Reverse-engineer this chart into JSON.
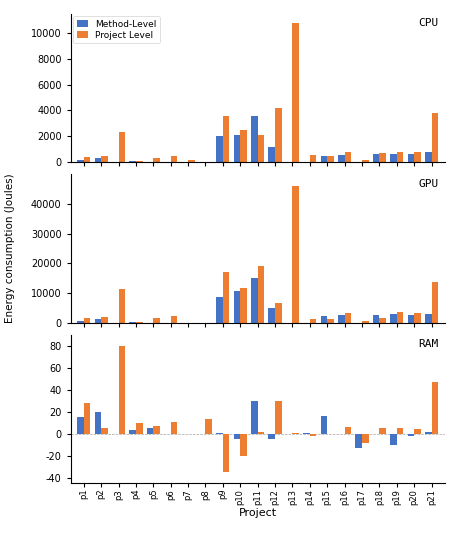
{
  "categories": [
    "p1",
    "p2",
    "p3",
    "p4",
    "p5",
    "p6",
    "p7",
    "p8",
    "p9",
    "p10",
    "p11",
    "p12",
    "p13",
    "p14",
    "p15",
    "p16",
    "p17",
    "p18",
    "p19",
    "p20",
    "p21"
  ],
  "cpu_method": [
    200,
    350,
    0,
    80,
    0,
    0,
    0,
    0,
    2000,
    2100,
    3600,
    1200,
    0,
    0,
    500,
    550,
    0,
    600,
    650,
    650,
    750
  ],
  "cpu_project": [
    400,
    450,
    2350,
    100,
    350,
    450,
    150,
    0,
    3600,
    2500,
    2100,
    4200,
    10800,
    550,
    500,
    750,
    200,
    700,
    750,
    800,
    3800
  ],
  "gpu_method": [
    700,
    1100,
    0,
    200,
    0,
    0,
    0,
    0,
    8500,
    10800,
    15000,
    5000,
    0,
    0,
    2200,
    2500,
    0,
    2500,
    2800,
    2700,
    3000
  ],
  "gpu_project": [
    1500,
    1800,
    11200,
    400,
    1600,
    2100,
    0,
    0,
    17000,
    11800,
    19000,
    6500,
    46000,
    1200,
    1200,
    3200,
    600,
    1500,
    3500,
    3300,
    13700
  ],
  "ram_method": [
    15,
    20,
    0,
    3,
    5,
    0,
    0,
    0,
    1,
    -5,
    30,
    -5,
    0,
    1,
    16,
    0,
    -13,
    0,
    -10,
    -2,
    2
  ],
  "ram_project": [
    28,
    5,
    80,
    10,
    7,
    11,
    0,
    13,
    -35,
    -20,
    2,
    30,
    1,
    -2,
    0,
    6,
    -8,
    5,
    5,
    4,
    47
  ],
  "color_method": "#4472c4",
  "color_project": "#ed7d31",
  "ylabel": "Energy consumption (Joules)",
  "xlabel": "Project",
  "label_method": "Method-Level",
  "label_project": "Project Level",
  "title_cpu": "CPU",
  "title_gpu": "GPU",
  "title_ram": "RAM",
  "cpu_yticks": [
    0,
    2000,
    4000,
    6000,
    8000,
    10000
  ],
  "gpu_yticks": [
    0,
    10000,
    20000,
    30000,
    40000
  ],
  "ram_yticks": [
    -40.0,
    -20.0,
    0.0,
    20.0,
    40.0,
    60.0,
    80.0
  ]
}
